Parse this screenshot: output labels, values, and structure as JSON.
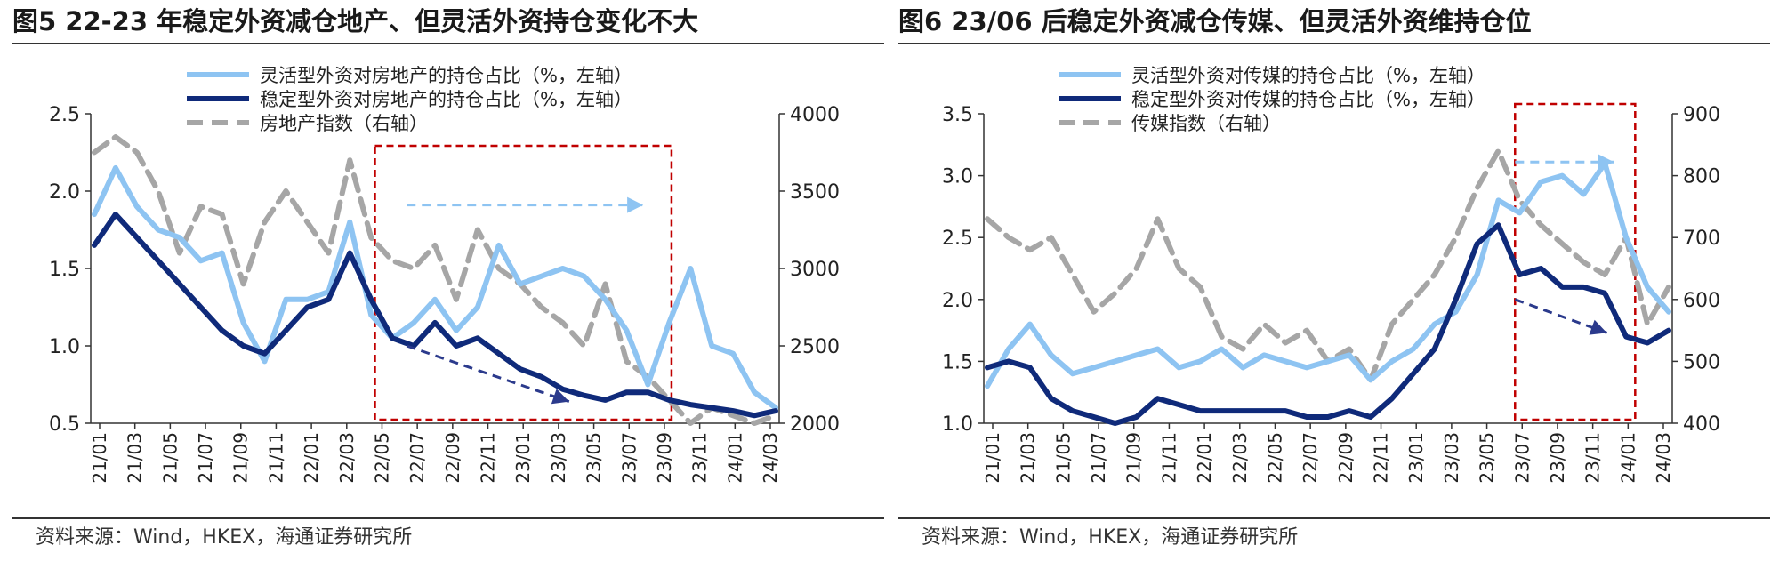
{
  "figures": [
    {
      "title": "图5  22-23 年稳定外资减仓地产、但灵活外资持仓变化不大",
      "source": "资料来源：Wind，HKEX，海通证券研究所"
    },
    {
      "title": "图6  23/06 后稳定外资减仓传媒、但灵活外资维持仓位",
      "source": "资料来源：Wind，HKEX，海通证券研究所"
    }
  ],
  "chart_data": [
    {
      "type": "line",
      "title": "",
      "xlabel": "",
      "ylabel": "",
      "x_ticks": [
        "21/01",
        "21/03",
        "21/05",
        "21/07",
        "21/09",
        "21/11",
        "22/01",
        "22/03",
        "22/05",
        "22/07",
        "22/09",
        "22/11",
        "23/01",
        "23/03",
        "23/05",
        "23/07",
        "23/09",
        "23/11",
        "24/01",
        "24/03"
      ],
      "y_left": {
        "range": [
          0.5,
          2.5
        ],
        "ticks": [
          "0.5",
          "1.0",
          "1.5",
          "2.0",
          "2.5"
        ]
      },
      "y_right": {
        "range": [
          2000,
          4000
        ],
        "ticks": [
          "2000",
          "2500",
          "3000",
          "3500",
          "4000"
        ]
      },
      "legend_position": "top",
      "colors": {
        "flexible": "#8ec4f2",
        "stable": "#0f2a7a",
        "index": "#a6a6a6",
        "highlight": "#c00000"
      },
      "highlight_box": {
        "x_from": "22/05",
        "x_to": "23/09"
      },
      "series": [
        {
          "name": "灵活型外资对房地产的持仓占比（%，左轴）",
          "axis": "left",
          "style": "solid-light",
          "values": [
            1.85,
            2.15,
            1.9,
            1.75,
            1.7,
            1.55,
            1.6,
            1.15,
            0.9,
            1.3,
            1.3,
            1.35,
            1.8,
            1.2,
            1.05,
            1.15,
            1.3,
            1.1,
            1.25,
            1.65,
            1.4,
            1.45,
            1.5,
            1.45,
            1.3,
            1.1,
            0.75,
            1.15,
            1.5,
            1.0,
            0.95,
            0.7,
            0.6
          ]
        },
        {
          "name": "稳定型外资对房地产的持仓占比（%，左轴）",
          "axis": "left",
          "style": "solid-dark",
          "values": [
            1.65,
            1.85,
            1.7,
            1.55,
            1.4,
            1.25,
            1.1,
            1.0,
            0.95,
            1.1,
            1.25,
            1.3,
            1.6,
            1.3,
            1.05,
            1.0,
            1.15,
            1.0,
            1.05,
            0.95,
            0.85,
            0.8,
            0.72,
            0.68,
            0.65,
            0.7,
            0.7,
            0.65,
            0.62,
            0.6,
            0.58,
            0.55,
            0.58
          ]
        },
        {
          "name": "房地产指数（右轴）",
          "axis": "right",
          "style": "dashed",
          "values": [
            3750,
            3850,
            3750,
            3500,
            3100,
            3400,
            3350,
            2900,
            3300,
            3500,
            3300,
            3100,
            3700,
            3200,
            3050,
            3000,
            3150,
            2800,
            3250,
            3000,
            2900,
            2750,
            2650,
            2500,
            2900,
            2400,
            2300,
            2150,
            2000,
            2100,
            2050,
            2000,
            2050
          ]
        }
      ]
    },
    {
      "type": "line",
      "title": "",
      "xlabel": "",
      "ylabel": "",
      "x_ticks": [
        "21/01",
        "21/03",
        "21/05",
        "21/07",
        "21/09",
        "21/11",
        "22/01",
        "22/03",
        "22/05",
        "22/07",
        "22/09",
        "22/11",
        "23/01",
        "23/03",
        "23/05",
        "23/07",
        "23/09",
        "23/11",
        "24/01",
        "24/03"
      ],
      "y_left": {
        "range": [
          1.0,
          3.5
        ],
        "ticks": [
          "1.0",
          "1.5",
          "2.0",
          "2.5",
          "3.0",
          "3.5"
        ]
      },
      "y_right": {
        "range": [
          400,
          900
        ],
        "ticks": [
          "400",
          "500",
          "600",
          "700",
          "800",
          "900"
        ]
      },
      "legend_position": "top",
      "colors": {
        "flexible": "#8ec4f2",
        "stable": "#0f2a7a",
        "index": "#a6a6a6",
        "highlight": "#c00000"
      },
      "highlight_box": {
        "x_from": "23/07",
        "x_to": "24/01"
      },
      "series": [
        {
          "name": "灵活型外资对传媒的持仓占比（%，左轴）",
          "axis": "left",
          "style": "solid-light",
          "values": [
            1.3,
            1.6,
            1.8,
            1.55,
            1.4,
            1.45,
            1.5,
            1.55,
            1.6,
            1.45,
            1.5,
            1.6,
            1.45,
            1.55,
            1.5,
            1.45,
            1.5,
            1.55,
            1.35,
            1.5,
            1.6,
            1.8,
            1.9,
            2.2,
            2.8,
            2.7,
            2.95,
            3.0,
            2.85,
            3.1,
            2.5,
            2.1,
            1.9
          ]
        },
        {
          "name": "稳定型外资对传媒的持仓占比（%，左轴）",
          "axis": "left",
          "style": "solid-dark",
          "values": [
            1.45,
            1.5,
            1.45,
            1.2,
            1.1,
            1.05,
            1.0,
            1.05,
            1.2,
            1.15,
            1.1,
            1.1,
            1.1,
            1.1,
            1.1,
            1.05,
            1.05,
            1.1,
            1.05,
            1.2,
            1.4,
            1.6,
            2.0,
            2.45,
            2.6,
            2.2,
            2.25,
            2.1,
            2.1,
            2.05,
            1.7,
            1.65,
            1.75
          ]
        },
        {
          "name": "传媒指数（右轴）",
          "axis": "right",
          "style": "dashed",
          "values": [
            730,
            700,
            680,
            700,
            640,
            580,
            610,
            650,
            730,
            650,
            620,
            540,
            520,
            560,
            530,
            550,
            500,
            520,
            470,
            560,
            600,
            640,
            700,
            780,
            840,
            760,
            720,
            690,
            660,
            640,
            700,
            560,
            620
          ]
        }
      ]
    }
  ]
}
